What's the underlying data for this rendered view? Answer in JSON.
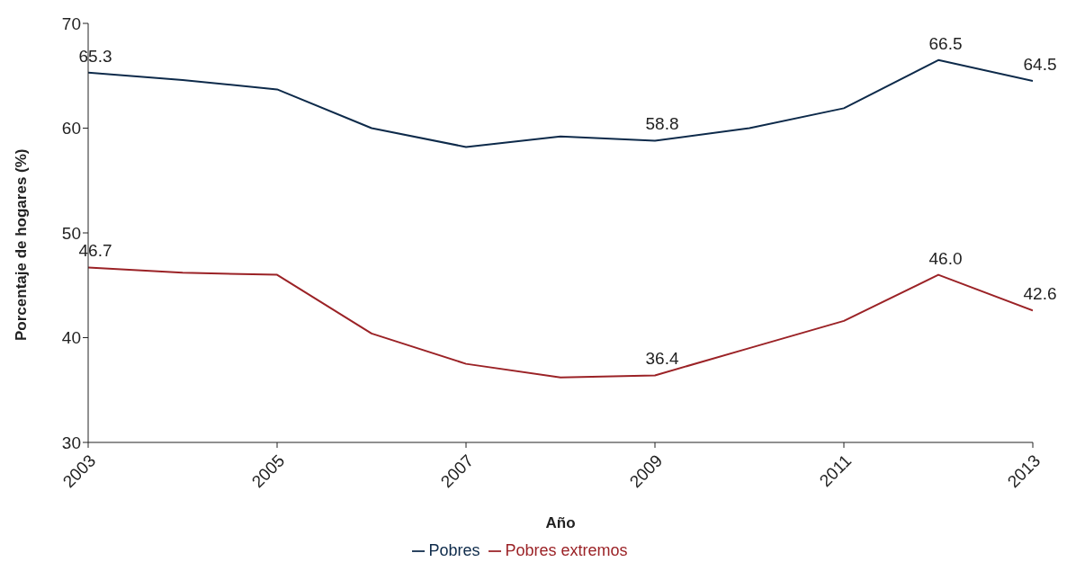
{
  "chart_data": {
    "type": "line",
    "xlabel": "Año",
    "ylabel": "Porcentaje de hogares (%)",
    "x": [
      2003,
      2004,
      2005,
      2006,
      2007,
      2008,
      2009,
      2010,
      2011,
      2012,
      2013
    ],
    "xlim": [
      2003,
      2013
    ],
    "xticks": [
      2003,
      2005,
      2007,
      2009,
      2011,
      2013
    ],
    "ylim": [
      30,
      70
    ],
    "yticks": [
      30,
      40,
      50,
      60,
      70
    ],
    "grid": false,
    "legend": "bottom",
    "marker": "none",
    "line_style": "solid",
    "series": [
      {
        "name": "Pobres",
        "color": "#0d2a4a",
        "values": [
          65.3,
          64.6,
          63.7,
          60.0,
          58.2,
          59.2,
          58.8,
          60.0,
          61.9,
          66.5,
          64.5
        ],
        "value_labels": [
          "65.3",
          null,
          null,
          null,
          null,
          null,
          "58.8",
          null,
          null,
          "66.5",
          "64.5"
        ]
      },
      {
        "name": "Pobres extremos",
        "color": "#9b2226",
        "values": [
          46.7,
          46.2,
          46.0,
          40.4,
          37.5,
          36.2,
          36.4,
          39.0,
          41.6,
          46.0,
          42.6
        ],
        "value_labels": [
          "46.7",
          null,
          null,
          null,
          null,
          null,
          "36.4",
          null,
          null,
          "46.0",
          "42.6"
        ]
      }
    ]
  }
}
